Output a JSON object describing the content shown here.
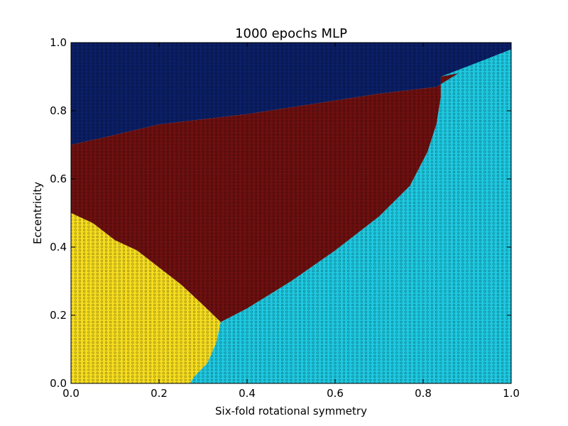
{
  "chart_data": {
    "type": "heatmap",
    "title": "1000 epochs MLP",
    "xlabel": "Six-fold rotational symmetry",
    "ylabel": "Eccentricity",
    "xlim": [
      0.0,
      1.0
    ],
    "ylim": [
      0.0,
      1.0
    ],
    "x_ticks": [
      "0.0",
      "0.2",
      "0.4",
      "0.6",
      "0.8",
      "1.0"
    ],
    "y_ticks": [
      "0.0",
      "0.2",
      "0.4",
      "0.6",
      "0.8",
      "1.0"
    ],
    "grid": false,
    "legend": false,
    "grid_resolution": 0.01,
    "classes": [
      {
        "id": "class-dark-blue",
        "color": "#0b1f66"
      },
      {
        "id": "class-dark-red",
        "color": "#6e1010"
      },
      {
        "id": "class-yellow",
        "color": "#f5dc1f"
      },
      {
        "id": "class-cyan",
        "color": "#1ec8e0"
      }
    ],
    "boundaries": {
      "blue_red": [
        [
          0.0,
          0.7
        ],
        [
          0.07,
          0.72
        ],
        [
          0.2,
          0.76
        ],
        [
          0.4,
          0.79
        ],
        [
          0.55,
          0.82
        ],
        [
          0.7,
          0.85
        ],
        [
          0.83,
          0.87
        ],
        [
          0.88,
          0.91
        ],
        [
          0.96,
          0.96
        ],
        [
          1.0,
          0.98
        ]
      ],
      "red_cyan": [
        [
          0.34,
          0.18
        ],
        [
          0.4,
          0.22
        ],
        [
          0.5,
          0.3
        ],
        [
          0.6,
          0.39
        ],
        [
          0.7,
          0.49
        ],
        [
          0.77,
          0.58
        ],
        [
          0.81,
          0.68
        ],
        [
          0.83,
          0.76
        ],
        [
          0.84,
          0.84
        ],
        [
          0.84,
          0.9
        ]
      ],
      "yellow_red": [
        [
          0.0,
          0.5
        ],
        [
          0.05,
          0.47
        ],
        [
          0.1,
          0.42
        ],
        [
          0.15,
          0.39
        ],
        [
          0.2,
          0.34
        ],
        [
          0.25,
          0.29
        ],
        [
          0.3,
          0.23
        ],
        [
          0.34,
          0.18
        ]
      ],
      "yellow_cyan": [
        [
          0.34,
          0.18
        ],
        [
          0.33,
          0.12
        ],
        [
          0.31,
          0.06
        ],
        [
          0.28,
          0.02
        ],
        [
          0.27,
          0.0
        ]
      ]
    }
  }
}
